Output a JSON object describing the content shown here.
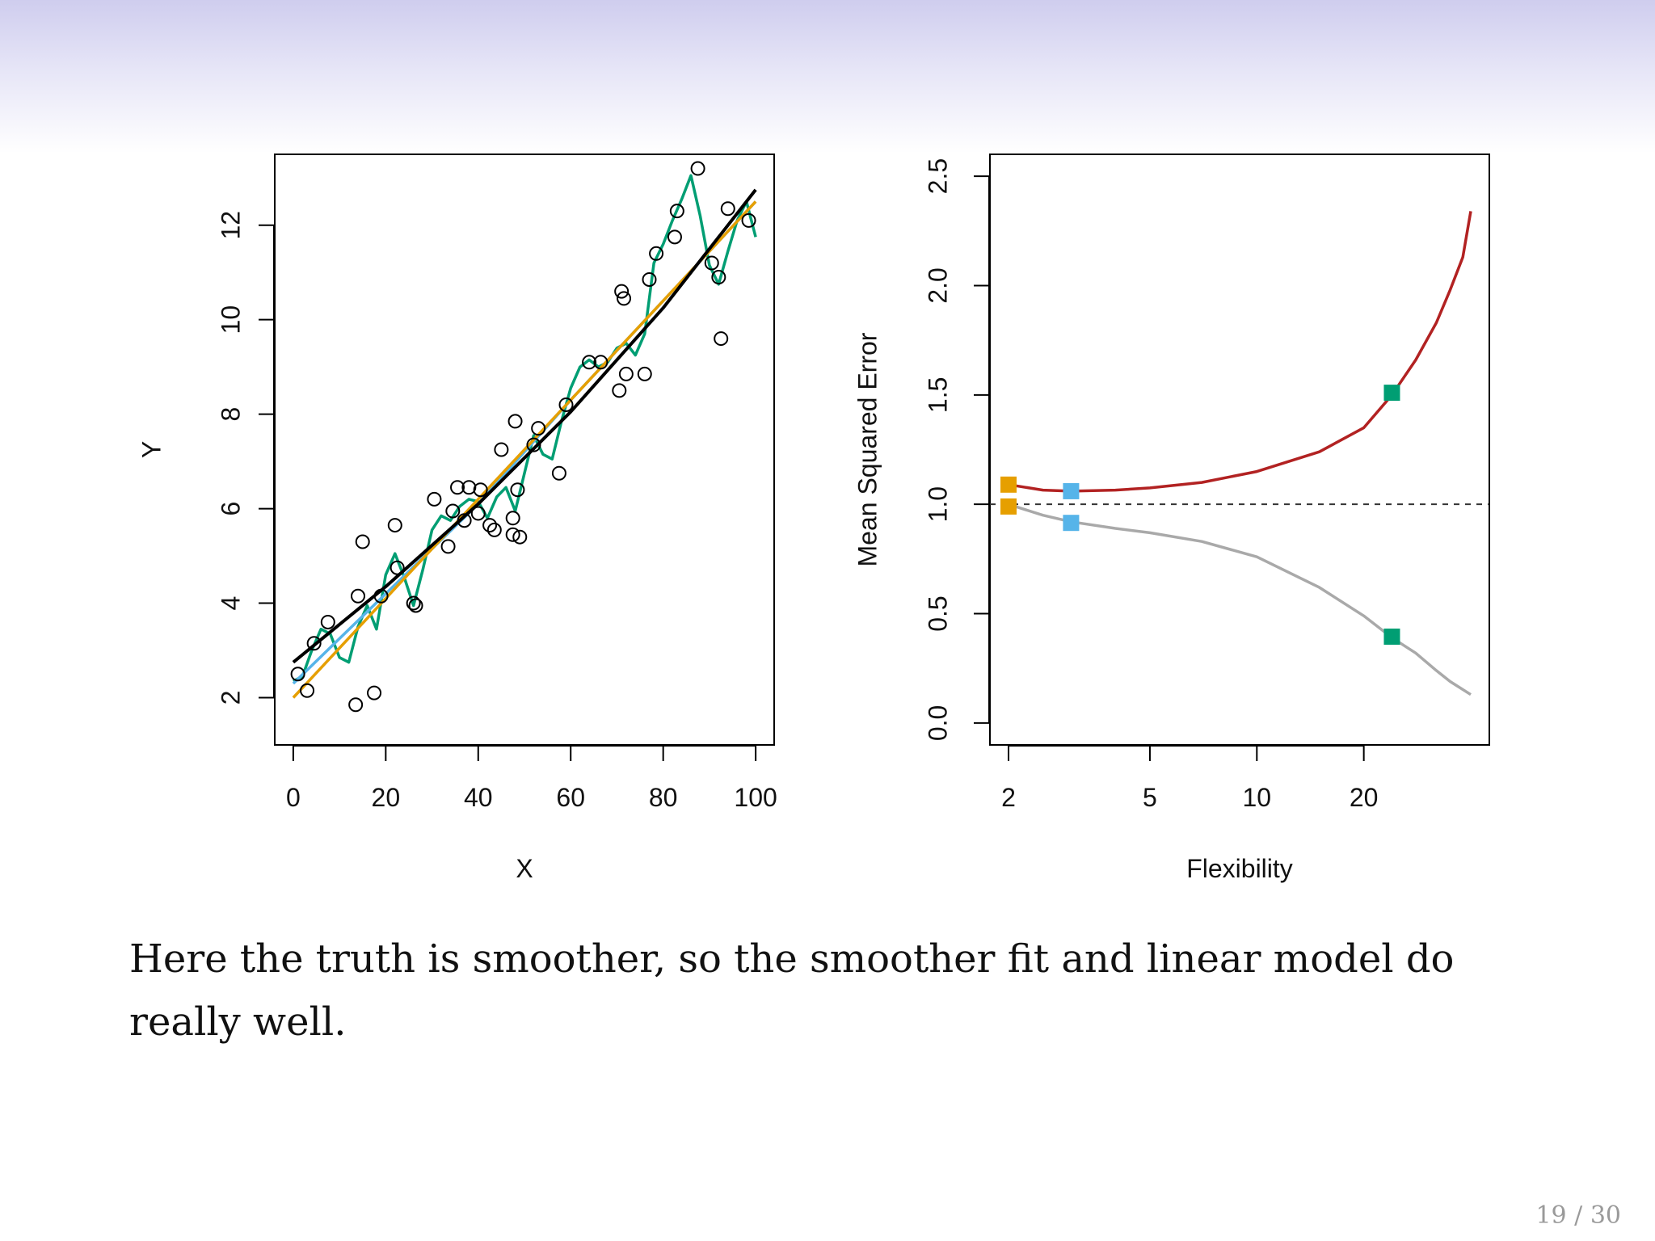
{
  "slide": {
    "caption": "Here the truth is smoother, so the smoother fit and linear model do really well.",
    "page_number": "19 / 30"
  },
  "chart_data": [
    {
      "type": "scatter",
      "xlabel": "X",
      "ylabel": "Y",
      "xlim": [
        -4,
        104
      ],
      "ylim": [
        1.0,
        13.5
      ],
      "x_ticks": [
        0,
        20,
        40,
        60,
        80,
        100
      ],
      "y_ticks": [
        2,
        4,
        6,
        8,
        10,
        12
      ],
      "points": [
        [
          1,
          2.5
        ],
        [
          3,
          2.15
        ],
        [
          4.5,
          3.15
        ],
        [
          7.5,
          3.6
        ],
        [
          13.5,
          1.85
        ],
        [
          14,
          4.15
        ],
        [
          15,
          5.3
        ],
        [
          17.5,
          2.1
        ],
        [
          19,
          4.15
        ],
        [
          22,
          5.65
        ],
        [
          22.5,
          4.75
        ],
        [
          26,
          4.0
        ],
        [
          26.5,
          3.95
        ],
        [
          30.5,
          6.2
        ],
        [
          33.5,
          5.2
        ],
        [
          34.5,
          5.95
        ],
        [
          35.5,
          6.45
        ],
        [
          37,
          5.75
        ],
        [
          38,
          6.45
        ],
        [
          40,
          5.9
        ],
        [
          40.5,
          6.4
        ],
        [
          42.5,
          5.65
        ],
        [
          43.5,
          5.55
        ],
        [
          45,
          7.25
        ],
        [
          47.5,
          5.45
        ],
        [
          47.5,
          5.8
        ],
        [
          48,
          7.85
        ],
        [
          48.5,
          6.4
        ],
        [
          49,
          5.4
        ],
        [
          52,
          7.35
        ],
        [
          53,
          7.7
        ],
        [
          57.5,
          6.75
        ],
        [
          59,
          8.2
        ],
        [
          64,
          9.1
        ],
        [
          66.5,
          9.1
        ],
        [
          70.5,
          8.5
        ],
        [
          71,
          10.6
        ],
        [
          71.5,
          10.45
        ],
        [
          72,
          8.85
        ],
        [
          76,
          8.85
        ],
        [
          77,
          10.85
        ],
        [
          78.5,
          11.4
        ],
        [
          82.5,
          11.75
        ],
        [
          83,
          12.3
        ],
        [
          87.5,
          13.2
        ],
        [
          90.5,
          11.2
        ],
        [
          92,
          10.9
        ],
        [
          92.5,
          9.6
        ],
        [
          94,
          12.35
        ],
        [
          98.5,
          12.1
        ]
      ],
      "series": [
        {
          "color": "#000000",
          "x": [
            0,
            20,
            40,
            60,
            80,
            100
          ],
          "y": [
            2.75,
            4.35,
            6.1,
            8.05,
            10.25,
            12.75
          ]
        },
        {
          "color": "#e69f00",
          "x": [
            0,
            100
          ],
          "y": [
            2.0,
            12.5
          ]
        },
        {
          "color": "#56b4e9",
          "x": [
            0,
            10,
            20,
            30,
            40,
            50,
            60,
            70,
            80,
            90,
            100
          ],
          "y": [
            2.3,
            3.25,
            4.2,
            5.15,
            6.1,
            7.2,
            8.3,
            9.35,
            10.4,
            11.45,
            12.5
          ]
        },
        {
          "color": "#009e73",
          "x": [
            0,
            2,
            4,
            6,
            8,
            10,
            12,
            14,
            16,
            18,
            20,
            22,
            24,
            26,
            28,
            30,
            32,
            34,
            36,
            38,
            40,
            42,
            44,
            46,
            48,
            50,
            52,
            54,
            56,
            58,
            60,
            62,
            64,
            66,
            68,
            70,
            72,
            74,
            76,
            78,
            80,
            82,
            84,
            86,
            88,
            90,
            92,
            94,
            96,
            98,
            100
          ],
          "y": [
            2.35,
            2.45,
            3.0,
            3.45,
            3.35,
            2.85,
            2.75,
            3.5,
            3.95,
            3.45,
            4.6,
            5.05,
            4.55,
            3.95,
            4.7,
            5.55,
            5.85,
            5.75,
            6.05,
            6.2,
            6.15,
            5.8,
            6.25,
            6.45,
            5.95,
            6.75,
            7.55,
            7.15,
            7.05,
            7.85,
            8.55,
            9.0,
            9.15,
            9.0,
            9.1,
            9.4,
            9.5,
            9.25,
            9.7,
            11.2,
            11.6,
            12.1,
            12.55,
            13.05,
            12.2,
            11.15,
            10.75,
            11.45,
            12.1,
            12.5,
            11.75
          ]
        }
      ]
    },
    {
      "type": "line",
      "xlabel": "Flexibility",
      "ylabel": "Mean Squared Error",
      "x_scale": "log",
      "xlim": [
        2,
        40
      ],
      "ylim": [
        -0.1,
        2.6
      ],
      "x_ticks": [
        2,
        5,
        10,
        20
      ],
      "y_ticks": [
        0.0,
        0.5,
        1.0,
        1.5,
        2.0,
        2.5
      ],
      "y_tick_labels": [
        "0.0",
        "0.5",
        "1.0",
        "1.5",
        "2.0",
        "2.5"
      ],
      "reference_line": {
        "y": 1.0,
        "style": "dashed",
        "color": "#333333"
      },
      "series": [
        {
          "color": "#b22222",
          "x": [
            2,
            2.5,
            3,
            4,
            5,
            7,
            10,
            15,
            20,
            24,
            28,
            32,
            35,
            38,
            40
          ],
          "y": [
            1.09,
            1.065,
            1.06,
            1.065,
            1.075,
            1.1,
            1.15,
            1.24,
            1.35,
            1.5,
            1.66,
            1.83,
            1.98,
            2.13,
            2.34
          ]
        },
        {
          "color": "#a9a9a9",
          "x": [
            2,
            2.5,
            3,
            4,
            5,
            7,
            10,
            15,
            20,
            24,
            28,
            32,
            35,
            40
          ],
          "y": [
            1.0,
            0.95,
            0.92,
            0.89,
            0.87,
            0.83,
            0.76,
            0.62,
            0.49,
            0.39,
            0.32,
            0.24,
            0.19,
            0.13
          ]
        }
      ],
      "markers": [
        {
          "x": 2,
          "y": 1.09,
          "color": "#e69f00"
        },
        {
          "x": 2,
          "y": 0.99,
          "color": "#e69f00"
        },
        {
          "x": 3,
          "y": 1.06,
          "color": "#56b4e9"
        },
        {
          "x": 3,
          "y": 0.915,
          "color": "#56b4e9"
        },
        {
          "x": 24,
          "y": 1.51,
          "color": "#009e73"
        },
        {
          "x": 24,
          "y": 0.395,
          "color": "#009e73"
        }
      ]
    }
  ]
}
